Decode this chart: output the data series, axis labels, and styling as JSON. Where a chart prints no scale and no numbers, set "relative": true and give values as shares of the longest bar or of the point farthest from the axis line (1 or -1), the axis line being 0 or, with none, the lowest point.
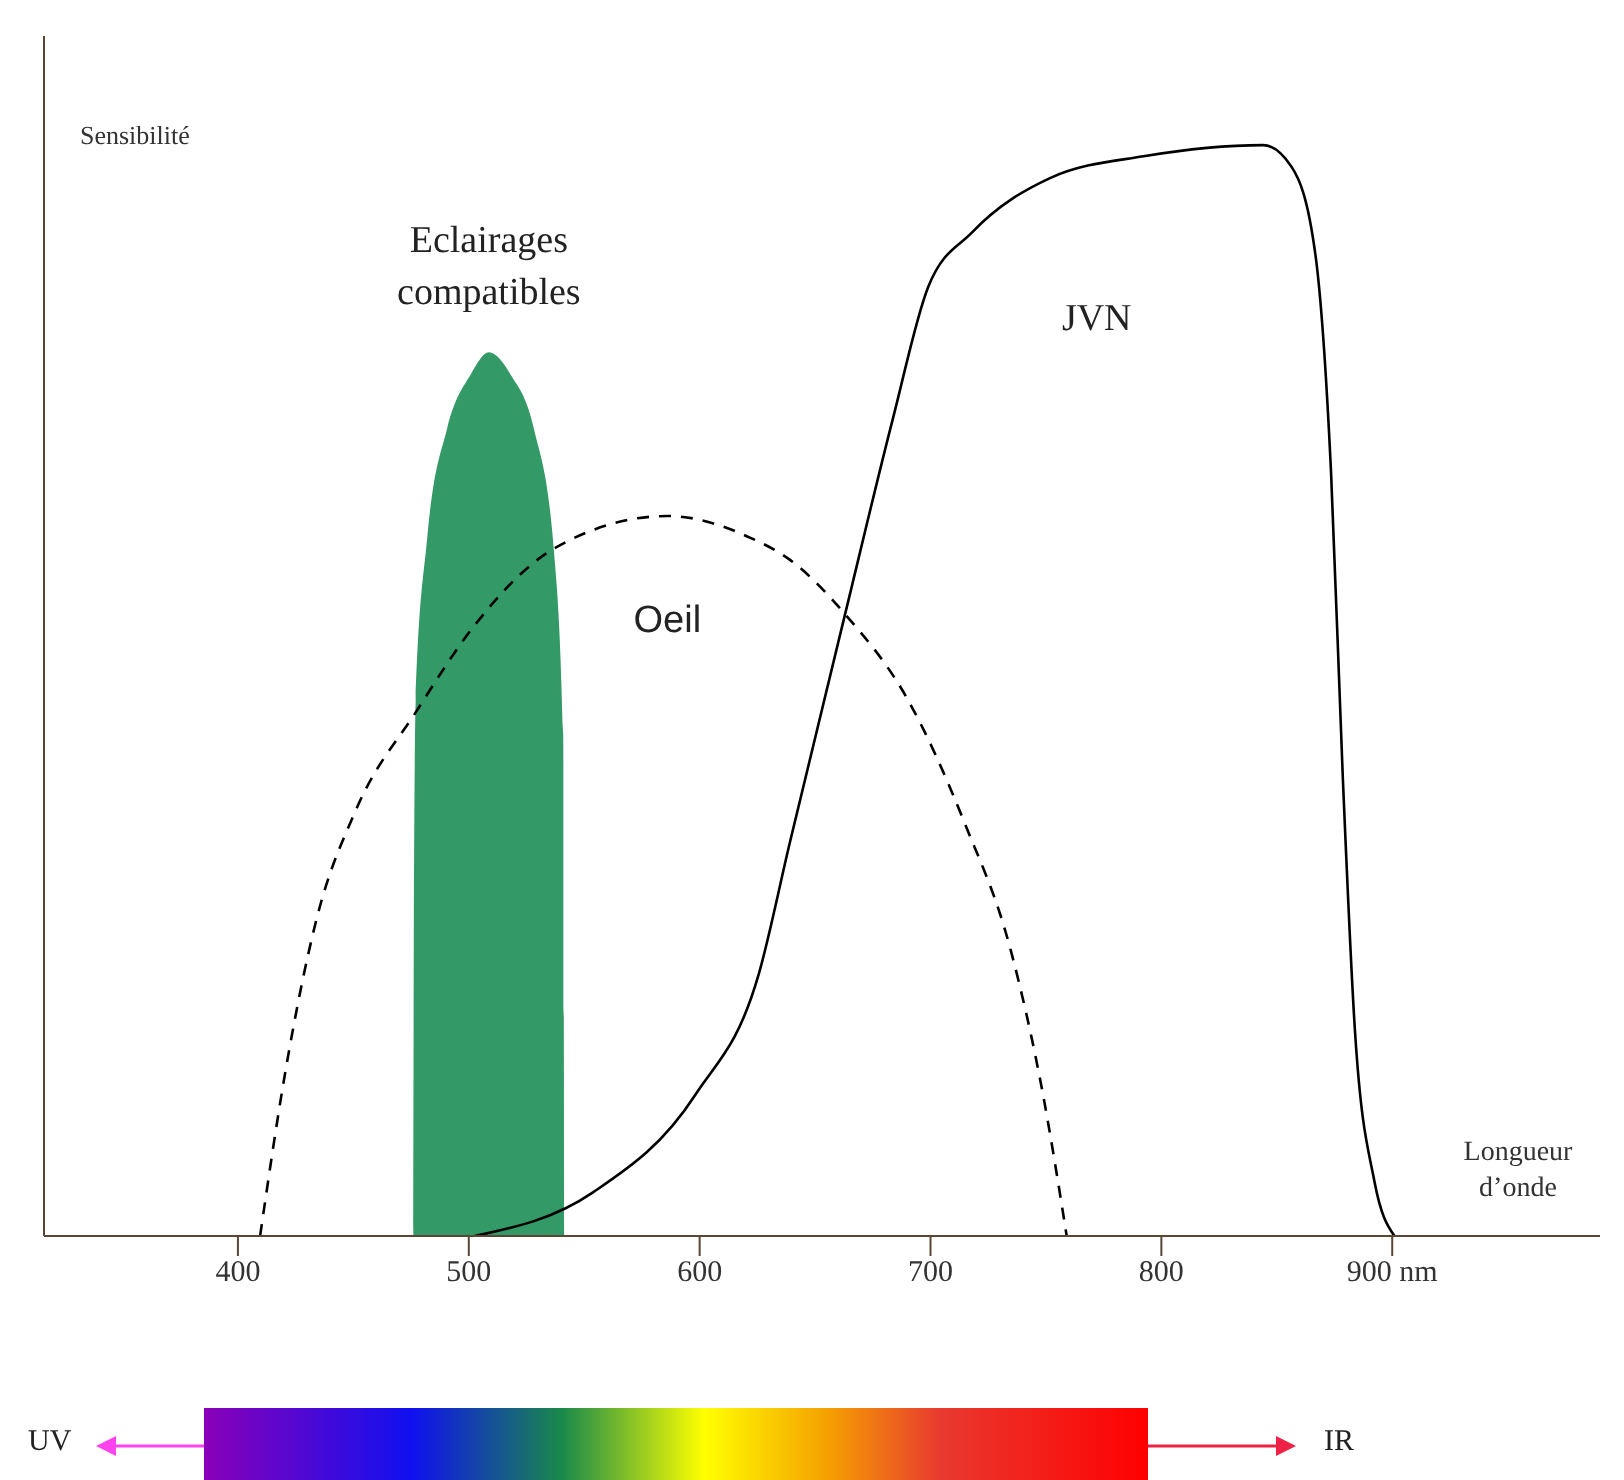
{
  "chart_data": {
    "type": "line",
    "relative": true,
    "ylabel": "Sensibilité",
    "xlabel": "Longueur d’onde",
    "xlim": [
      316,
      990
    ],
    "xticks": [
      400,
      500,
      600,
      700,
      800,
      {
        "value": 900,
        "label": "900 nm"
      }
    ],
    "grid": false,
    "legend": false,
    "marker": "none",
    "annotations": [
      "UV",
      "IR"
    ],
    "series": [
      {
        "name": "Eclairages compatibles",
        "type": "area",
        "color": "#339966",
        "x": [
          476,
          476.2,
          477,
          482,
          490.6,
          500.9,
          508.7,
          518,
          528.2,
          536.8,
          540.9,
          541.2,
          541.3
        ],
        "values": [
          0,
          0.29,
          0.49,
          0.64,
          0.74,
          0.79,
          0.81,
          0.79,
          0.74,
          0.63,
          0.46,
          0.15,
          0
        ]
      },
      {
        "name": "Oeil",
        "line_style": "dashed",
        "color": "#000000",
        "x": [
          409.6,
          420.5,
          434,
          451,
          477,
          502.6,
          536.8,
          586,
          622,
          639,
          663,
          690.6,
          714.5,
          735,
          748.7,
          759
        ],
        "values": [
          0,
          0.15,
          0.29,
          0.39,
          0.48,
          0.56,
          0.63,
          0.66,
          0.64,
          0.62,
          0.57,
          0.49,
          0.38,
          0.26,
          0.13,
          0
        ]
      },
      {
        "name": "JVN",
        "line_style": "solid",
        "color": "#000000",
        "x": [
          502.6,
          553.8,
          598.3,
          625.6,
          639,
          663,
          683.8,
          699,
          718,
          752,
          793,
          844,
          856.4,
          866.7,
          873.5,
          878.6,
          883.8,
          892.3,
          901
        ],
        "values": [
          0,
          0.04,
          0.13,
          0.24,
          0.36,
          0.57,
          0.75,
          0.87,
          0.92,
          0.97,
          0.99,
          1,
          0.98,
          0.9,
          0.7,
          0.42,
          0.19,
          0.05,
          0
        ]
      }
    ]
  }
}
